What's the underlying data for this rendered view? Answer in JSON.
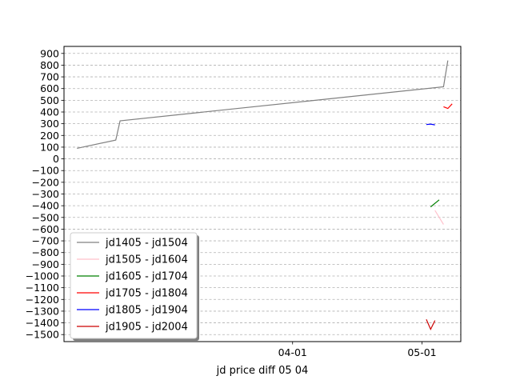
{
  "chart_data": {
    "type": "line",
    "title": "",
    "xlabel": "jd price diff 05 04",
    "ylabel": "",
    "x_ticks": [
      "04-01",
      "05-01"
    ],
    "y_ticks": [
      900,
      800,
      700,
      600,
      500,
      400,
      300,
      200,
      100,
      0,
      -100,
      -200,
      -300,
      -400,
      -500,
      -600,
      -700,
      -800,
      -900,
      -1000,
      -1100,
      -1200,
      -1300,
      -1400,
      -1500
    ],
    "y_tick_labels": [
      "900",
      "800",
      "700",
      "600",
      "500",
      "400",
      "300",
      "200",
      "100",
      "0",
      "−100",
      "−200",
      "−300",
      "−400",
      "−500",
      "−600",
      "−700",
      "−800",
      "−900",
      "−1000",
      "−1100",
      "−1200",
      "−1300",
      "−1400",
      "−1500"
    ],
    "xlim": [
      "2014-02-07",
      "2014-05-10"
    ],
    "ylim": [
      -1560,
      960
    ],
    "grid": "horizontal-dashed",
    "legend_position": "lower-left",
    "series": [
      {
        "name": "jd1405 - jd1504",
        "color": "#808080",
        "points": [
          [
            "2014-02-10",
            90
          ],
          [
            "2014-02-19",
            160
          ],
          [
            "2014-02-20",
            325
          ],
          [
            "2014-05-06",
            615
          ],
          [
            "2014-05-07",
            840
          ]
        ]
      },
      {
        "name": "jd1505 - jd1604",
        "color": "#ffc0cb",
        "points": [
          [
            "2014-05-04",
            -440
          ],
          [
            "2014-05-06",
            -560
          ]
        ]
      },
      {
        "name": "jd1605 - jd1704",
        "color": "#008000",
        "points": [
          [
            "2014-05-03",
            -410
          ],
          [
            "2014-05-05",
            -350
          ]
        ]
      },
      {
        "name": "jd1705 - jd1804",
        "color": "#ff0000",
        "points": [
          [
            "2014-05-06",
            445
          ],
          [
            "2014-05-07",
            430
          ],
          [
            "2014-05-08",
            470
          ]
        ]
      },
      {
        "name": "jd1805 - jd1904",
        "color": "#0000ff",
        "points": [
          [
            "2014-05-02",
            293
          ],
          [
            "2014-05-03",
            297
          ],
          [
            "2014-05-04",
            290
          ]
        ]
      },
      {
        "name": "jd1905 - jd2004",
        "color": "#cc0000",
        "points": [
          [
            "2014-05-02",
            -1370
          ],
          [
            "2014-05-03",
            -1455
          ],
          [
            "2014-05-04",
            -1380
          ]
        ]
      }
    ]
  }
}
